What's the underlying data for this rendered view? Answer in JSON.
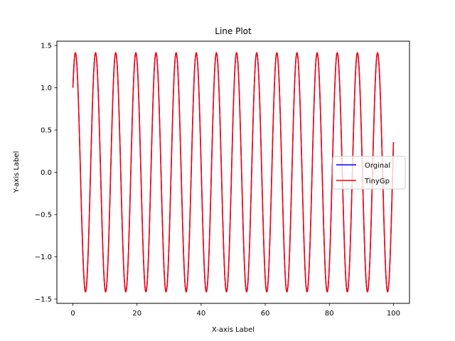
{
  "chart_data": {
    "type": "line",
    "title": "Line Plot",
    "xlabel": "X-axis Label",
    "ylabel": "Y-axis Label",
    "xlim": [
      -5,
      105
    ],
    "ylim": [
      -1.55,
      1.55
    ],
    "xticks": [
      0,
      20,
      40,
      60,
      80,
      100
    ],
    "yticks": [
      -1.5,
      -1.0,
      -0.5,
      0.0,
      0.5,
      1.0,
      1.5
    ],
    "xtick_labels": [
      "0",
      "20",
      "40",
      "60",
      "80",
      "100"
    ],
    "ytick_labels": [
      "−1.5",
      "−1.0",
      "−0.5",
      "0.0",
      "0.5",
      "1.0",
      "1.5"
    ],
    "grid": false,
    "legend_position": "center-right",
    "function": "sin(x) + cos(x)",
    "x_range": [
      0,
      100
    ],
    "sample_count": 1000,
    "series": [
      {
        "name": "Orginal",
        "color": "#0000ff"
      },
      {
        "name": "TinyGp",
        "color": "#ff0000"
      }
    ]
  }
}
